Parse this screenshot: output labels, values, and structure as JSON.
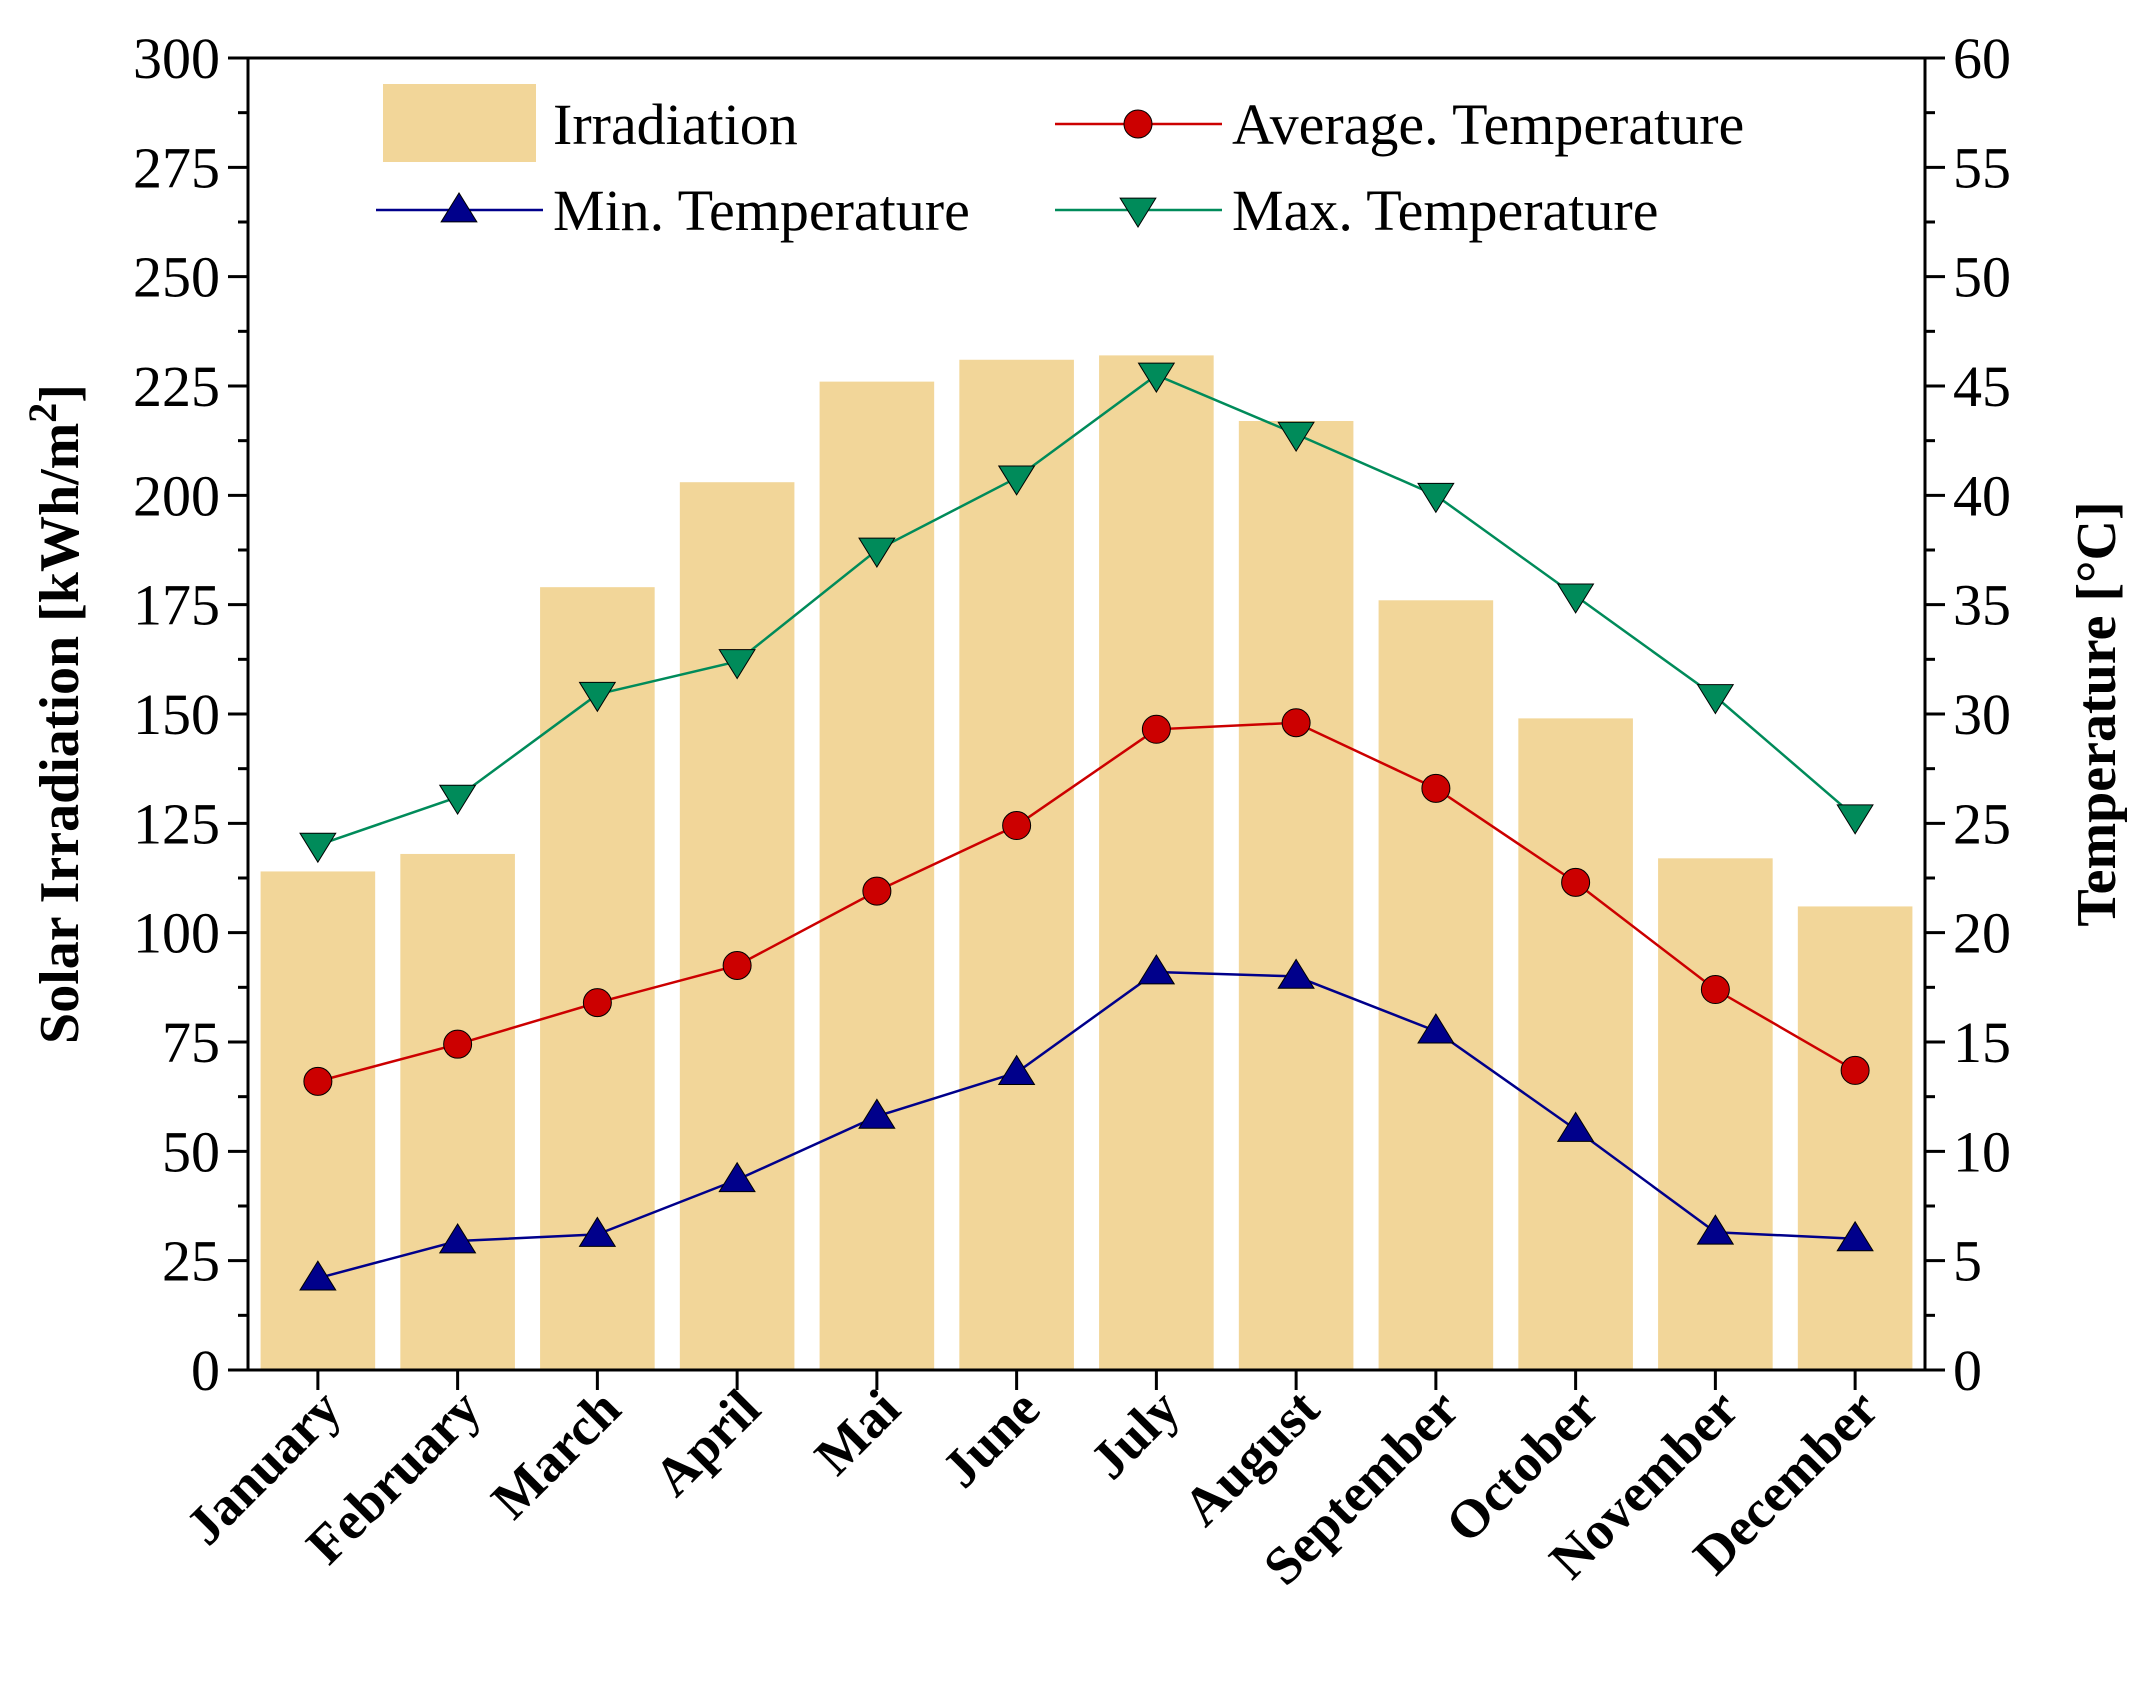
{
  "chart_data": {
    "type": "bar+line",
    "categories": [
      "January",
      "February",
      "March",
      "April",
      "Mai",
      "June",
      "July",
      "August",
      "September",
      "October",
      "November",
      "December"
    ],
    "left_axis": {
      "label_main": "Solar Irradiation [kWh/m",
      "label_sup": "2",
      "label_end": "]",
      "range": [
        0,
        300
      ],
      "ticks": [
        "0",
        "25",
        "50",
        "75",
        "100",
        "125",
        "150",
        "175",
        "200",
        "225",
        "250",
        "275",
        "300"
      ]
    },
    "right_axis": {
      "label": "Temperature [°C]",
      "range": [
        0,
        60
      ],
      "ticks": [
        "0",
        "5",
        "10",
        "15",
        "20",
        "25",
        "30",
        "35",
        "40",
        "45",
        "50",
        "55",
        "60"
      ]
    },
    "series": [
      {
        "name": "Irradiation",
        "kind": "bar",
        "axis": "left",
        "color": "#f2d699",
        "values": [
          114,
          118,
          179,
          203,
          226,
          231,
          232,
          217,
          176,
          149,
          117,
          106
        ]
      },
      {
        "name": "Average. Temperature",
        "kind": "line",
        "axis": "right",
        "color": "#cc0000",
        "marker": "circle",
        "values": [
          13.2,
          14.9,
          16.8,
          18.5,
          21.9,
          24.9,
          29.3,
          29.6,
          26.6,
          22.3,
          17.4,
          13.7
        ]
      },
      {
        "name": "Min. Temperature",
        "kind": "line",
        "axis": "right",
        "color": "#00008b",
        "marker": "triangle-up",
        "values": [
          4.2,
          5.9,
          6.2,
          8.7,
          11.6,
          13.6,
          18.2,
          18.0,
          15.5,
          11.0,
          6.3,
          6.0
        ]
      },
      {
        "name": "Max. Temperature",
        "kind": "line",
        "axis": "right",
        "color": "#008b5a",
        "marker": "triangle-down",
        "values": [
          24.0,
          26.2,
          30.9,
          32.4,
          37.5,
          40.8,
          45.5,
          42.8,
          40.0,
          35.4,
          30.8,
          25.3
        ]
      }
    ],
    "legend": {
      "position": "top-center",
      "entries": [
        "Irradiation",
        "Average. Temperature",
        "Min. Temperature",
        "Max. Temperature"
      ]
    }
  }
}
